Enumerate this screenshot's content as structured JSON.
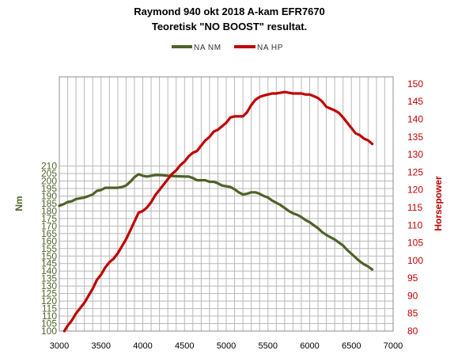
{
  "chart_data": {
    "type": "line",
    "title": "Raymond 940 okt 2018 A-kam EFR7670",
    "subtitle": "Teoretisk \"NO BOOST\" resultat.",
    "legend": {
      "placement": "top-center"
    },
    "xlabel": "",
    "ylabel": "Nm",
    "y2label": "Horsepower",
    "xlim": [
      3000,
      7000
    ],
    "ylim": [
      100,
      210
    ],
    "y2lim": [
      80,
      152
    ],
    "x_ticks": [
      "3000",
      "3500",
      "4000",
      "4500",
      "5000",
      "5500",
      "6000",
      "6500",
      "7000"
    ],
    "y_ticks": [
      "100",
      "105",
      "110",
      "115",
      "120",
      "125",
      "130",
      "135",
      "140",
      "145",
      "150",
      "155",
      "160",
      "165",
      "170",
      "175",
      "180",
      "185",
      "190",
      "195",
      "200",
      "205",
      "210"
    ],
    "y2_ticks": [
      "80",
      "85",
      "90",
      "95",
      "100",
      "105",
      "110",
      "115",
      "120",
      "125",
      "130",
      "135",
      "140",
      "145",
      "150"
    ],
    "grid": true,
    "series": [
      {
        "name": "NA NM",
        "axis": "left",
        "color": "#4f6228",
        "points": [
          [
            3000,
            183.5
          ],
          [
            3050,
            184.5
          ],
          [
            3100,
            186
          ],
          [
            3150,
            186.5
          ],
          [
            3200,
            188
          ],
          [
            3250,
            188.5
          ],
          [
            3300,
            189
          ],
          [
            3350,
            190
          ],
          [
            3400,
            191
          ],
          [
            3450,
            193.5
          ],
          [
            3500,
            194
          ],
          [
            3550,
            195.5
          ],
          [
            3600,
            195.5
          ],
          [
            3650,
            195.5
          ],
          [
            3700,
            195.5
          ],
          [
            3750,
            196
          ],
          [
            3800,
            197
          ],
          [
            3850,
            199.5
          ],
          [
            3900,
            202.5
          ],
          [
            3950,
            204.5
          ],
          [
            4000,
            203.5
          ],
          [
            4050,
            203
          ],
          [
            4100,
            203.5
          ],
          [
            4150,
            204
          ],
          [
            4200,
            204
          ],
          [
            4300,
            203.5
          ],
          [
            4400,
            203.2
          ],
          [
            4500,
            203
          ],
          [
            4550,
            203
          ],
          [
            4600,
            202
          ],
          [
            4650,
            200.5
          ],
          [
            4700,
            200.5
          ],
          [
            4750,
            200.5
          ],
          [
            4800,
            199.5
          ],
          [
            4850,
            199.5
          ],
          [
            4900,
            198.5
          ],
          [
            4950,
            197
          ],
          [
            5000,
            196.5
          ],
          [
            5050,
            196
          ],
          [
            5100,
            194.5
          ],
          [
            5150,
            192.5
          ],
          [
            5200,
            191
          ],
          [
            5250,
            191.5
          ],
          [
            5300,
            192.5
          ],
          [
            5350,
            192.5
          ],
          [
            5400,
            191.5
          ],
          [
            5450,
            190
          ],
          [
            5500,
            189
          ],
          [
            5550,
            187
          ],
          [
            5600,
            185.5
          ],
          [
            5650,
            184
          ],
          [
            5700,
            182
          ],
          [
            5750,
            180
          ],
          [
            5800,
            178.5
          ],
          [
            5850,
            177.5
          ],
          [
            5900,
            176
          ],
          [
            5950,
            174
          ],
          [
            6000,
            172.5
          ],
          [
            6050,
            170.5
          ],
          [
            6100,
            168.5
          ],
          [
            6150,
            166
          ],
          [
            6200,
            164
          ],
          [
            6250,
            162.5
          ],
          [
            6300,
            161
          ],
          [
            6350,
            159
          ],
          [
            6400,
            157
          ],
          [
            6450,
            154
          ],
          [
            6500,
            151.5
          ],
          [
            6550,
            149
          ],
          [
            6600,
            146.5
          ],
          [
            6650,
            144.5
          ],
          [
            6700,
            143
          ],
          [
            6750,
            141
          ]
        ]
      },
      {
        "name": "NA HP",
        "axis": "right",
        "color": "#c00000",
        "points": [
          [
            3060,
            80
          ],
          [
            3100,
            81.5
          ],
          [
            3150,
            83
          ],
          [
            3200,
            85
          ],
          [
            3250,
            86.5
          ],
          [
            3300,
            88
          ],
          [
            3350,
            90
          ],
          [
            3400,
            92
          ],
          [
            3450,
            94.5
          ],
          [
            3500,
            96
          ],
          [
            3550,
            98
          ],
          [
            3600,
            99.5
          ],
          [
            3650,
            100.5
          ],
          [
            3700,
            102
          ],
          [
            3750,
            104
          ],
          [
            3800,
            106
          ],
          [
            3850,
            108.5
          ],
          [
            3900,
            111
          ],
          [
            3950,
            113.5
          ],
          [
            4000,
            114
          ],
          [
            4050,
            115
          ],
          [
            4100,
            116.5
          ],
          [
            4150,
            118.5
          ],
          [
            4200,
            120
          ],
          [
            4250,
            121.5
          ],
          [
            4300,
            123
          ],
          [
            4350,
            124.5
          ],
          [
            4400,
            125.5
          ],
          [
            4450,
            127
          ],
          [
            4500,
            128
          ],
          [
            4550,
            129.5
          ],
          [
            4600,
            130.5
          ],
          [
            4650,
            131
          ],
          [
            4700,
            132.5
          ],
          [
            4750,
            134
          ],
          [
            4800,
            135
          ],
          [
            4850,
            136.5
          ],
          [
            4900,
            137
          ],
          [
            4950,
            138
          ],
          [
            5000,
            139
          ],
          [
            5050,
            140.5
          ],
          [
            5100,
            140.8
          ],
          [
            5150,
            140.8
          ],
          [
            5200,
            140.8
          ],
          [
            5250,
            142
          ],
          [
            5300,
            144
          ],
          [
            5350,
            145.5
          ],
          [
            5400,
            146.3
          ],
          [
            5450,
            146.7
          ],
          [
            5500,
            147
          ],
          [
            5550,
            147.3
          ],
          [
            5600,
            147.3
          ],
          [
            5650,
            147.5
          ],
          [
            5700,
            147.7
          ],
          [
            5750,
            147.5
          ],
          [
            5800,
            147.3
          ],
          [
            5850,
            147.3
          ],
          [
            5900,
            147.3
          ],
          [
            5950,
            147
          ],
          [
            6000,
            147
          ],
          [
            6050,
            146.5
          ],
          [
            6100,
            146
          ],
          [
            6150,
            145
          ],
          [
            6200,
            143.5
          ],
          [
            6250,
            143
          ],
          [
            6300,
            142.5
          ],
          [
            6350,
            141.8
          ],
          [
            6400,
            140.5
          ],
          [
            6450,
            139
          ],
          [
            6500,
            137.5
          ],
          [
            6550,
            136
          ],
          [
            6600,
            135.5
          ],
          [
            6650,
            134.5
          ],
          [
            6700,
            134
          ],
          [
            6750,
            133
          ]
        ]
      }
    ]
  }
}
